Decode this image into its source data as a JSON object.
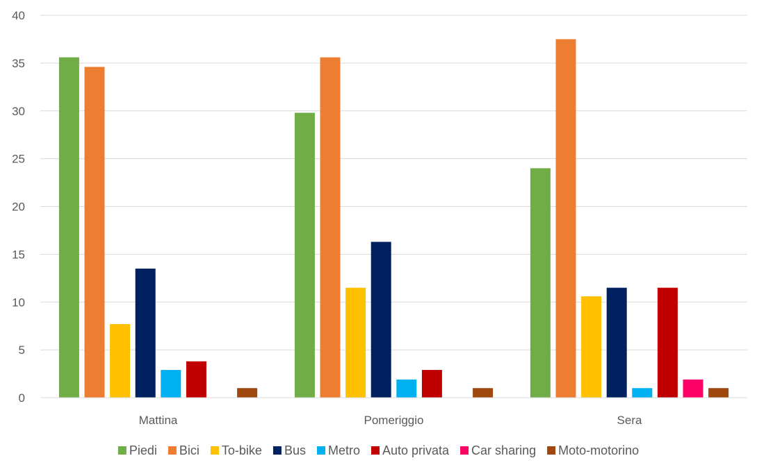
{
  "chart_data": {
    "type": "bar",
    "categories": [
      "Mattina",
      "Pomeriggio",
      "Sera"
    ],
    "ylim": [
      0,
      40
    ],
    "yticks": [
      0,
      5,
      10,
      15,
      20,
      25,
      30,
      35,
      40
    ],
    "grid": true,
    "legend_position": "bottom",
    "series": [
      {
        "name": "Piedi",
        "color": "#70AD47",
        "values": [
          35.6,
          29.8,
          24.0
        ]
      },
      {
        "name": "Bici",
        "color": "#ED7D31",
        "values": [
          34.6,
          35.6,
          37.5
        ]
      },
      {
        "name": "To-bike",
        "color": "#FFC000",
        "values": [
          7.7,
          11.5,
          10.6
        ]
      },
      {
        "name": "Bus",
        "color": "#002060",
        "values": [
          13.5,
          16.3,
          11.5
        ]
      },
      {
        "name": "Metro",
        "color": "#00B0F0",
        "values": [
          2.9,
          1.9,
          1.0
        ]
      },
      {
        "name": "Auto privata",
        "color": "#C00000",
        "values": [
          3.8,
          2.9,
          11.5
        ]
      },
      {
        "name": "Car sharing",
        "color": "#FF0066",
        "values": [
          0,
          0,
          1.9
        ]
      },
      {
        "name": "Moto-motorino",
        "color": "#9E480E",
        "values": [
          1.0,
          1.0,
          1.0
        ]
      }
    ]
  }
}
